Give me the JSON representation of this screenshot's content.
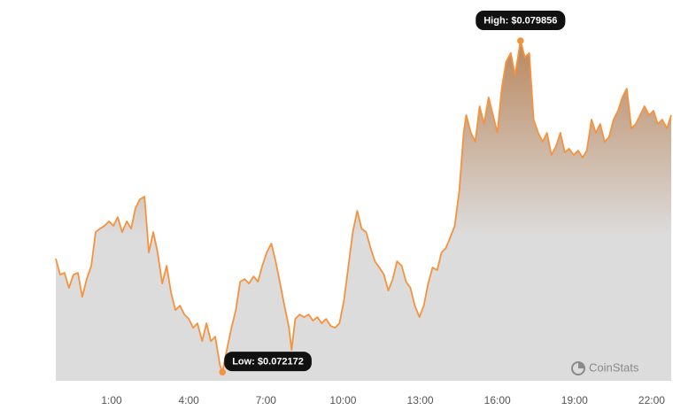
{
  "chart_data": {
    "type": "area",
    "x": [
      -1.17,
      -1.0,
      -0.83,
      -0.66,
      -0.48,
      -0.31,
      -0.14,
      0.03,
      0.21,
      0.38,
      0.55,
      0.72,
      0.9,
      1.07,
      1.24,
      1.41,
      1.59,
      1.76,
      1.93,
      2.1,
      2.28,
      2.45,
      2.62,
      2.79,
      2.97,
      3.14,
      3.31,
      3.48,
      3.66,
      3.83,
      4.0,
      4.17,
      4.34,
      4.52,
      4.69,
      4.86,
      5.03,
      5.21,
      5.31,
      5.48,
      5.66,
      5.83,
      6.0,
      6.17,
      6.34,
      6.52,
      6.69,
      6.86,
      7.03,
      7.21,
      7.38,
      7.55,
      7.72,
      7.9,
      8.0,
      8.14,
      8.31,
      8.48,
      8.66,
      8.83,
      9.0,
      9.17,
      9.34,
      9.52,
      9.69,
      9.86,
      10.03,
      10.21,
      10.38,
      10.55,
      10.72,
      10.9,
      11.07,
      11.24,
      11.41,
      11.59,
      11.76,
      11.93,
      12.1,
      12.28,
      12.45,
      12.62,
      12.79,
      12.97,
      13.14,
      13.31,
      13.48,
      13.66,
      13.83,
      14.0,
      14.17,
      14.34,
      14.52,
      14.69,
      14.79,
      14.97,
      15.14,
      15.31,
      15.48,
      15.66,
      15.83,
      16.0,
      16.17,
      16.34,
      16.52,
      16.69,
      16.9,
      17.07,
      17.24,
      17.41,
      17.59,
      17.76,
      17.93,
      18.1,
      18.28,
      18.45,
      18.62,
      18.79,
      18.97,
      19.14,
      19.31,
      19.48,
      19.66,
      19.83,
      20.0,
      20.17,
      20.34,
      20.52,
      20.69,
      20.86,
      21.03,
      21.21,
      21.38,
      21.55,
      21.72,
      21.9,
      22.07,
      22.24,
      22.41,
      22.59,
      22.76
    ],
    "values": [
      0.074802,
      0.074433,
      0.074474,
      0.074124,
      0.074433,
      0.074474,
      0.073919,
      0.07433,
      0.074638,
      0.075419,
      0.075501,
      0.075563,
      0.075666,
      0.075563,
      0.075768,
      0.075419,
      0.075666,
      0.075501,
      0.075974,
      0.076179,
      0.076241,
      0.074946,
      0.075419,
      0.074946,
      0.074227,
      0.074638,
      0.074022,
      0.073611,
      0.073713,
      0.073508,
      0.073405,
      0.0732,
      0.073302,
      0.072891,
      0.073302,
      0.072891,
      0.072994,
      0.072336,
      0.072172,
      0.072686,
      0.0732,
      0.073611,
      0.074268,
      0.07433,
      0.074227,
      0.074391,
      0.074268,
      0.074638,
      0.074946,
      0.075152,
      0.074741,
      0.074227,
      0.073713,
      0.0732,
      0.072686,
      0.073405,
      0.073508,
      0.073446,
      0.073508,
      0.073364,
      0.073446,
      0.073302,
      0.073405,
      0.073241,
      0.0732,
      0.073302,
      0.073816,
      0.074638,
      0.075419,
      0.075912,
      0.075501,
      0.075419,
      0.075049,
      0.074741,
      0.074597,
      0.074433,
      0.074063,
      0.07433,
      0.074741,
      0.074638,
      0.074268,
      0.074124,
      0.073713,
      0.073446,
      0.073713,
      0.074227,
      0.074597,
      0.074535,
      0.074946,
      0.075049,
      0.075296,
      0.075563,
      0.076385,
      0.077721,
      0.078132,
      0.077721,
      0.077515,
      0.078337,
      0.077926,
      0.078543,
      0.078132,
      0.077721,
      0.078748,
      0.079365,
      0.07957,
      0.079056,
      0.079856,
      0.079467,
      0.07957,
      0.078029,
      0.077721,
      0.077515,
      0.077721,
      0.077207,
      0.077412,
      0.077721,
      0.077268,
      0.077351,
      0.077207,
      0.07731,
      0.077145,
      0.07731,
      0.078029,
      0.077721,
      0.077926,
      0.077515,
      0.077618,
      0.078029,
      0.078234,
      0.078543,
      0.078748,
      0.077823,
      0.077926,
      0.078132,
      0.078337,
      0.078132,
      0.078234,
      0.077926,
      0.078029,
      0.077823,
      0.078132
    ],
    "color": "#f5923e",
    "xlim": [
      -1.17,
      22.76
    ],
    "ylim": [
      0.07197,
      0.08039
    ],
    "xticks": [
      {
        "value": 1,
        "label": "1:00"
      },
      {
        "value": 4,
        "label": "4:00"
      },
      {
        "value": 7,
        "label": "7:00"
      },
      {
        "value": 10,
        "label": "10:00"
      },
      {
        "value": 13,
        "label": "13:00"
      },
      {
        "value": 16,
        "label": "16:00"
      },
      {
        "value": 19,
        "label": "19:00"
      },
      {
        "value": 22,
        "label": "22:00"
      }
    ],
    "grid": false,
    "high_label": "High: $0.079856",
    "low_label": "Low: $0.072172",
    "watermark": "CoinStats"
  }
}
